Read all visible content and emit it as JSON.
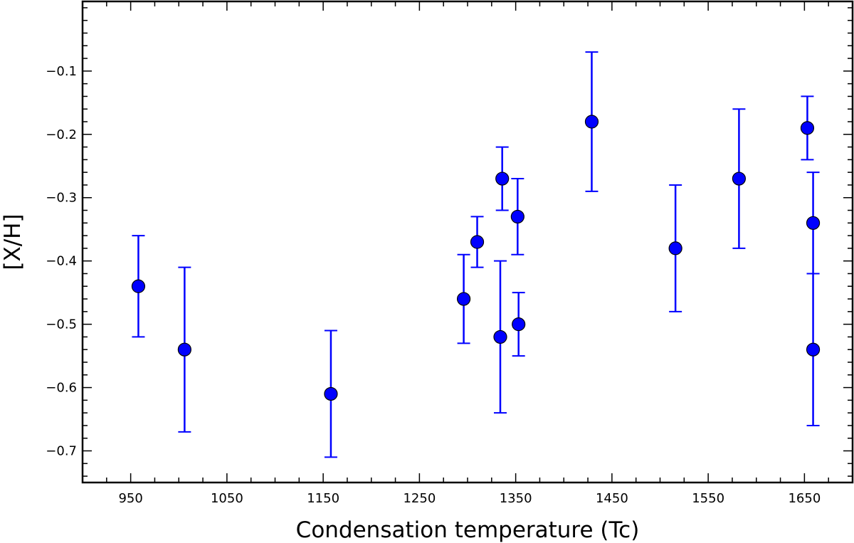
{
  "chart_data": {
    "type": "scatter",
    "title": "",
    "xlabel": "Condensation temperature (Tc)",
    "ylabel": "[X/H]",
    "xlim": [
      900,
      1700
    ],
    "ylim": [
      -0.75,
      0.01
    ],
    "xticks": [
      950,
      1050,
      1150,
      1250,
      1350,
      1450,
      1550,
      1650
    ],
    "yticks": [
      -0.7,
      -0.6,
      -0.5,
      -0.4,
      -0.3,
      -0.2,
      -0.1
    ],
    "xtick_labels": [
      "950",
      "1050",
      "1150",
      "1250",
      "1350",
      "1450",
      "1550",
      "1650"
    ],
    "ytick_labels": [
      "−0.7",
      "−0.6",
      "−0.5",
      "−0.4",
      "−0.3",
      "−0.2",
      "−0.1"
    ],
    "grid": false,
    "marker_color": "#0000ff",
    "errorbar_color": "#0000ff",
    "points": [
      {
        "x": 958,
        "y": -0.44,
        "err_low": -0.52,
        "err_high": -0.36
      },
      {
        "x": 1006,
        "y": -0.54,
        "err_low": -0.67,
        "err_high": -0.41
      },
      {
        "x": 1158,
        "y": -0.61,
        "err_low": -0.71,
        "err_high": -0.51
      },
      {
        "x": 1296,
        "y": -0.46,
        "err_low": -0.53,
        "err_high": -0.39
      },
      {
        "x": 1310,
        "y": -0.37,
        "err_low": -0.41,
        "err_high": -0.33
      },
      {
        "x": 1334,
        "y": -0.52,
        "err_low": -0.64,
        "err_high": -0.4
      },
      {
        "x": 1336,
        "y": -0.27,
        "err_low": -0.32,
        "err_high": -0.22
      },
      {
        "x": 1352,
        "y": -0.33,
        "err_low": -0.39,
        "err_high": -0.27
      },
      {
        "x": 1353,
        "y": -0.5,
        "err_low": -0.55,
        "err_high": -0.45
      },
      {
        "x": 1429,
        "y": -0.18,
        "err_low": -0.29,
        "err_high": -0.07
      },
      {
        "x": 1516,
        "y": -0.38,
        "err_low": -0.48,
        "err_high": -0.28
      },
      {
        "x": 1582,
        "y": -0.27,
        "err_low": -0.38,
        "err_high": -0.16
      },
      {
        "x": 1653,
        "y": -0.19,
        "err_low": -0.24,
        "err_high": -0.14
      },
      {
        "x": 1659,
        "y": -0.34,
        "err_low": -0.42,
        "err_high": -0.26
      },
      {
        "x": 1659,
        "y": -0.54,
        "err_low": -0.66,
        "err_high": -0.42
      }
    ]
  }
}
